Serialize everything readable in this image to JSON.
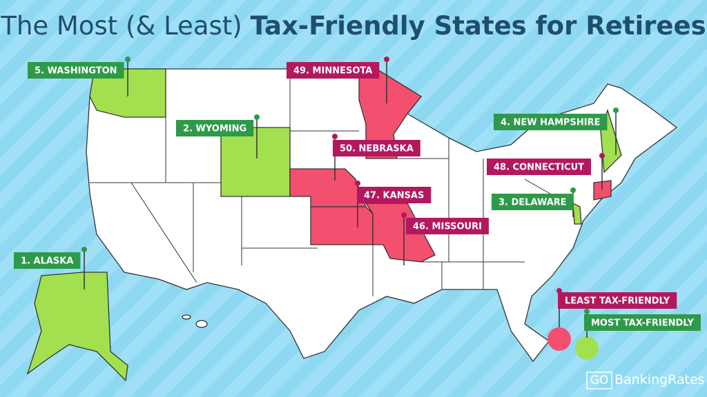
{
  "title": {
    "light": "The Most (& Least)",
    "bold": "Tax-Friendly States for Retirees"
  },
  "most_tax_friendly": [
    "1. ALASKA",
    "2. WYOMING",
    "3. DELAWARE",
    "4. NEW HAMPSHIRE",
    "5. WASHINGTON"
  ],
  "least_tax_friendly": [
    "46. MISSOURI",
    "47. KANSAS",
    "48. CONNECTICUT",
    "49. MINNESOTA",
    "50. NEBRASKA"
  ],
  "legend": {
    "least": "LEAST TAX-FRIENDLY",
    "most": "MOST TAX-FRIENDLY"
  },
  "logo": {
    "prefix": "GO",
    "name": "BankingRates"
  }
}
